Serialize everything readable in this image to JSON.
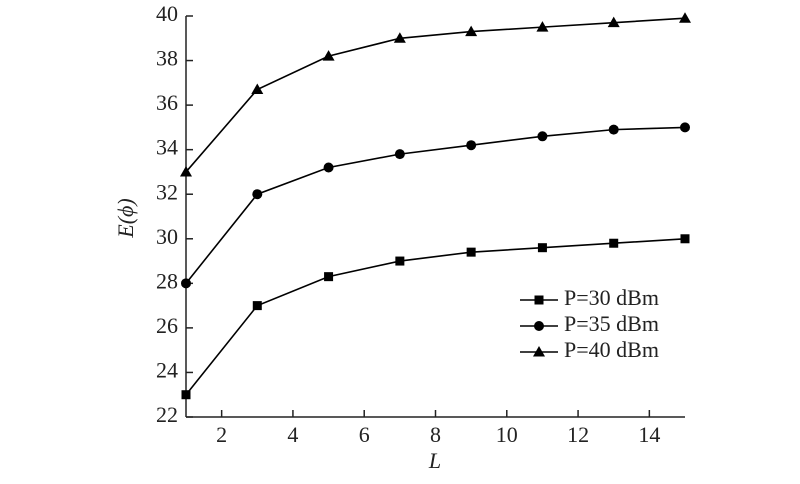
{
  "chart_data": {
    "type": "line",
    "x": [
      1,
      3,
      5,
      7,
      9,
      11,
      13,
      15
    ],
    "series": [
      {
        "name": "P=30 dBm",
        "color": "#000000",
        "marker": "square",
        "values": [
          23,
          27,
          28.3,
          29,
          29.4,
          29.6,
          29.8,
          30
        ]
      },
      {
        "name": "P=35 dBm",
        "color": "#000000",
        "marker": "circle",
        "values": [
          28,
          32,
          33.2,
          33.8,
          34.2,
          34.6,
          34.9,
          35
        ]
      },
      {
        "name": "P=40 dBm",
        "color": "#000000",
        "marker": "triangle",
        "values": [
          33,
          36.7,
          38.2,
          39,
          39.3,
          39.5,
          39.7,
          39.9
        ]
      }
    ],
    "xlabel": "L",
    "ylabel": "E(ϕ)",
    "xlim": [
      1,
      15
    ],
    "xticks": [
      2,
      4,
      6,
      8,
      10,
      12,
      14
    ],
    "ylim": [
      22,
      40
    ],
    "yticks": [
      22,
      24,
      26,
      28,
      30,
      32,
      34,
      36,
      38,
      40
    ],
    "legend": "lower right"
  }
}
